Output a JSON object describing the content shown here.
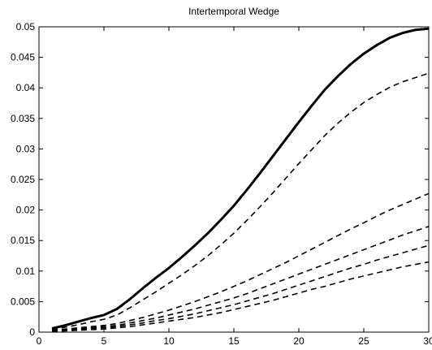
{
  "chart_data": {
    "type": "line",
    "title": "Intertemporal Wedge",
    "xlabel": "",
    "ylabel": "",
    "xlim": [
      0,
      30
    ],
    "ylim": [
      0,
      0.05
    ],
    "xticks": [
      0,
      5,
      10,
      15,
      20,
      25,
      30
    ],
    "xtick_labels": [
      "0",
      "5",
      "10",
      "15",
      "20",
      "25",
      "30"
    ],
    "yticks": [
      0,
      0.005,
      0.01,
      0.015,
      0.02,
      0.025,
      0.03,
      0.035,
      0.04,
      0.045,
      0.05
    ],
    "ytick_labels": [
      "0",
      "0.005",
      "0.01",
      "0.015",
      "0.02",
      "0.025",
      "0.03",
      "0.035",
      "0.04",
      "0.045",
      "0.05"
    ],
    "grid": false,
    "legend": "none",
    "x": [
      1,
      2,
      3,
      4,
      5,
      6,
      7,
      8,
      9,
      10,
      11,
      12,
      13,
      14,
      15,
      16,
      17,
      18,
      19,
      20,
      21,
      22,
      23,
      24,
      25,
      26,
      27,
      28,
      29,
      30
    ],
    "series": [
      {
        "style": "solid",
        "values": [
          0.0006,
          0.0011,
          0.0017,
          0.0023,
          0.0028,
          0.0038,
          0.0054,
          0.0072,
          0.0089,
          0.0105,
          0.0123,
          0.0142,
          0.0162,
          0.0184,
          0.0207,
          0.0233,
          0.026,
          0.0288,
          0.0316,
          0.0344,
          0.0371,
          0.0397,
          0.0419,
          0.0439,
          0.0456,
          0.047,
          0.0482,
          0.049,
          0.0495,
          0.0497
        ]
      },
      {
        "style": "dashed",
        "values": [
          0.0004,
          0.0008,
          0.0012,
          0.0017,
          0.0021,
          0.0028,
          0.004,
          0.0053,
          0.0066,
          0.008,
          0.0094,
          0.0109,
          0.0125,
          0.0143,
          0.0162,
          0.0183,
          0.0205,
          0.0228,
          0.0252,
          0.0276,
          0.0299,
          0.0322,
          0.0342,
          0.036,
          0.0376,
          0.0389,
          0.0401,
          0.041,
          0.0417,
          0.0424
        ]
      },
      {
        "style": "dashed",
        "values": [
          0.0003,
          0.0005,
          0.0007,
          0.0009,
          0.0011,
          0.0014,
          0.0019,
          0.0024,
          0.003,
          0.0036,
          0.0043,
          0.005,
          0.0058,
          0.0066,
          0.0075,
          0.0084,
          0.0094,
          0.0104,
          0.0114,
          0.0125,
          0.0136,
          0.0147,
          0.0158,
          0.0169,
          0.0179,
          0.019,
          0.02,
          0.0209,
          0.0218,
          0.0227
        ]
      },
      {
        "style": "dashed",
        "values": [
          0.0002,
          0.0004,
          0.0005,
          0.0007,
          0.0009,
          0.0011,
          0.0015,
          0.0019,
          0.0023,
          0.0028,
          0.0033,
          0.0038,
          0.0044,
          0.005,
          0.0056,
          0.0063,
          0.0071,
          0.0079,
          0.0087,
          0.0095,
          0.0103,
          0.0111,
          0.0119,
          0.0127,
          0.0135,
          0.0143,
          0.0151,
          0.0159,
          0.0166,
          0.0173
        ]
      },
      {
        "style": "dashed",
        "values": [
          0.0002,
          0.0003,
          0.0004,
          0.0006,
          0.0007,
          0.0009,
          0.0012,
          0.0015,
          0.0019,
          0.0022,
          0.0026,
          0.003,
          0.0035,
          0.004,
          0.0045,
          0.0051,
          0.0057,
          0.0063,
          0.007,
          0.0077,
          0.0084,
          0.0091,
          0.0098,
          0.0105,
          0.0111,
          0.0118,
          0.0124,
          0.013,
          0.0136,
          0.0142
        ]
      },
      {
        "style": "dashed",
        "values": [
          0.0001,
          0.0002,
          0.0003,
          0.0004,
          0.0005,
          0.0007,
          0.0009,
          0.0012,
          0.0015,
          0.0018,
          0.0021,
          0.0024,
          0.0028,
          0.0032,
          0.0037,
          0.0042,
          0.0047,
          0.0052,
          0.0058,
          0.0064,
          0.007,
          0.0075,
          0.0081,
          0.0087,
          0.0092,
          0.0097,
          0.0102,
          0.0107,
          0.0111,
          0.0115
        ]
      }
    ]
  }
}
